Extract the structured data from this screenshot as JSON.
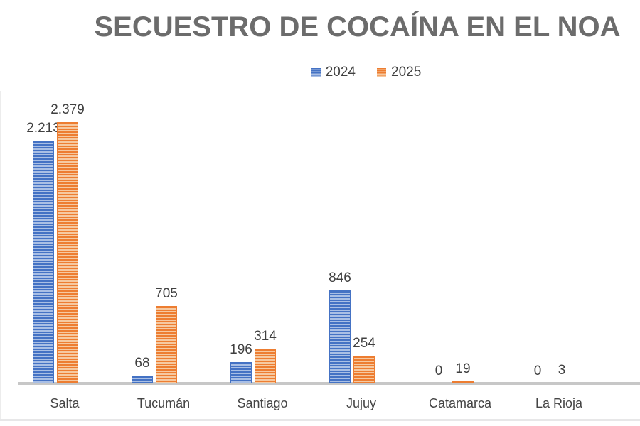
{
  "title": "SECUESTRO DE COCAÍNA EN EL NOA",
  "legend": {
    "items": [
      {
        "label": "2024",
        "color": "#4472C4"
      },
      {
        "label": "2025",
        "color": "#ED7D31"
      }
    ]
  },
  "chart_data": {
    "type": "bar",
    "title": "SECUESTRO DE COCAÍNA EN EL NOA",
    "categories": [
      "Salta",
      "Tucumán",
      "Santiago",
      "Jujuy",
      "Catamarca",
      "La Rioja"
    ],
    "series": [
      {
        "name": "2024",
        "color": "#4472C4",
        "color_light": "#A9BFE5",
        "values": [
          2213,
          68,
          196,
          846,
          0,
          0
        ],
        "labels": [
          "2.213",
          "68",
          "196",
          "846",
          "0",
          "0"
        ]
      },
      {
        "name": "2025",
        "color": "#ED7D31",
        "color_light": "#F6C9A0",
        "values": [
          2379,
          705,
          314,
          254,
          19,
          3
        ],
        "labels": [
          "2.379",
          "705",
          "314",
          "254",
          "19",
          "3"
        ]
      }
    ],
    "xlabel": "",
    "ylabel": "",
    "ylim": [
      0,
      2379
    ],
    "grid": false,
    "y_axis_visible": false,
    "legend_position": "top",
    "bar_pattern": "horizontal-stripes",
    "axis_line_color": "#C7C7C7",
    "label_color": "#404040",
    "title_color": "#6C6C6C"
  }
}
